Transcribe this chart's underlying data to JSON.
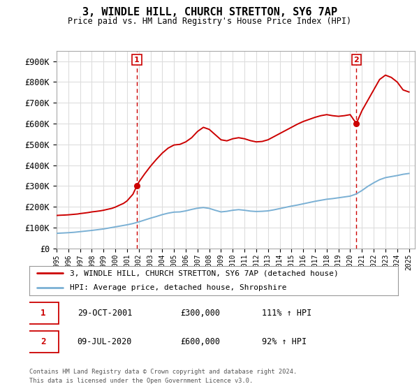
{
  "title": "3, WINDLE HILL, CHURCH STRETTON, SY6 7AP",
  "subtitle": "Price paid vs. HM Land Registry's House Price Index (HPI)",
  "ylabel_ticks": [
    "£0",
    "£100K",
    "£200K",
    "£300K",
    "£400K",
    "£500K",
    "£600K",
    "£700K",
    "£800K",
    "£900K"
  ],
  "ytick_values": [
    0,
    100000,
    200000,
    300000,
    400000,
    500000,
    600000,
    700000,
    800000,
    900000
  ],
  "ylim": [
    0,
    950000
  ],
  "xlim_start": 1995.0,
  "xlim_end": 2025.5,
  "property_color": "#cc0000",
  "hpi_color": "#7ab0d4",
  "vline_color": "#cc0000",
  "grid_color": "#dddddd",
  "background_color": "#ffffff",
  "legend_label_property": "3, WINDLE HILL, CHURCH STRETTON, SY6 7AP (detached house)",
  "legend_label_hpi": "HPI: Average price, detached house, Shropshire",
  "sale1_date": "29-OCT-2001",
  "sale1_price": 300000,
  "sale1_price_str": "£300,000",
  "sale1_hpi_pct": "111% ↑ HPI",
  "sale1_year": 2001.83,
  "sale2_date": "09-JUL-2020",
  "sale2_price": 600000,
  "sale2_price_str": "£600,000",
  "sale2_hpi_pct": "92% ↑ HPI",
  "sale2_year": 2020.52,
  "footer_line1": "Contains HM Land Registry data © Crown copyright and database right 2024.",
  "footer_line2": "This data is licensed under the Open Government Licence v3.0.",
  "hpi_data": [
    [
      1995.0,
      72000
    ],
    [
      1995.5,
      73500
    ],
    [
      1996.0,
      75000
    ],
    [
      1996.5,
      77000
    ],
    [
      1997.0,
      80000
    ],
    [
      1997.5,
      83000
    ],
    [
      1998.0,
      86000
    ],
    [
      1998.5,
      89500
    ],
    [
      1999.0,
      93000
    ],
    [
      1999.5,
      98000
    ],
    [
      2000.0,
      103000
    ],
    [
      2000.5,
      108000
    ],
    [
      2001.0,
      113000
    ],
    [
      2001.5,
      119000
    ],
    [
      2002.0,
      127000
    ],
    [
      2002.5,
      136000
    ],
    [
      2003.0,
      145000
    ],
    [
      2003.5,
      153000
    ],
    [
      2004.0,
      162000
    ],
    [
      2004.5,
      169000
    ],
    [
      2005.0,
      174000
    ],
    [
      2005.5,
      175000
    ],
    [
      2006.0,
      180000
    ],
    [
      2006.5,
      187000
    ],
    [
      2007.0,
      193000
    ],
    [
      2007.5,
      196000
    ],
    [
      2008.0,
      192000
    ],
    [
      2008.5,
      183000
    ],
    [
      2009.0,
      175000
    ],
    [
      2009.5,
      178000
    ],
    [
      2010.0,
      183000
    ],
    [
      2010.5,
      186000
    ],
    [
      2011.0,
      183000
    ],
    [
      2011.5,
      179000
    ],
    [
      2012.0,
      177000
    ],
    [
      2012.5,
      178000
    ],
    [
      2013.0,
      180000
    ],
    [
      2013.5,
      185000
    ],
    [
      2014.0,
      191000
    ],
    [
      2014.5,
      197000
    ],
    [
      2015.0,
      203000
    ],
    [
      2015.5,
      208000
    ],
    [
      2016.0,
      214000
    ],
    [
      2016.5,
      220000
    ],
    [
      2017.0,
      226000
    ],
    [
      2017.5,
      231000
    ],
    [
      2018.0,
      236000
    ],
    [
      2018.5,
      239000
    ],
    [
      2019.0,
      243000
    ],
    [
      2019.5,
      247000
    ],
    [
      2020.0,
      251000
    ],
    [
      2020.5,
      261000
    ],
    [
      2021.0,
      278000
    ],
    [
      2021.5,
      298000
    ],
    [
      2022.0,
      315000
    ],
    [
      2022.5,
      330000
    ],
    [
      2023.0,
      340000
    ],
    [
      2023.5,
      345000
    ],
    [
      2024.0,
      350000
    ],
    [
      2024.5,
      356000
    ],
    [
      2025.0,
      360000
    ]
  ],
  "property_data": [
    [
      1995.0,
      158000
    ],
    [
      1995.3,
      159000
    ],
    [
      1995.7,
      160000
    ],
    [
      1996.0,
      161000
    ],
    [
      1996.4,
      163000
    ],
    [
      1996.8,
      165000
    ],
    [
      1997.0,
      167000
    ],
    [
      1997.3,
      169000
    ],
    [
      1997.7,
      172000
    ],
    [
      1998.0,
      175000
    ],
    [
      1998.3,
      177000
    ],
    [
      1998.7,
      180000
    ],
    [
      1999.0,
      183000
    ],
    [
      1999.3,
      187000
    ],
    [
      1999.7,
      192000
    ],
    [
      2000.0,
      198000
    ],
    [
      2000.3,
      206000
    ],
    [
      2000.7,
      216000
    ],
    [
      2001.0,
      228000
    ],
    [
      2001.5,
      260000
    ],
    [
      2001.83,
      300000
    ],
    [
      2002.0,
      318000
    ],
    [
      2002.5,
      358000
    ],
    [
      2003.0,
      395000
    ],
    [
      2003.5,
      428000
    ],
    [
      2004.0,
      458000
    ],
    [
      2004.5,
      482000
    ],
    [
      2005.0,
      497000
    ],
    [
      2005.5,
      500000
    ],
    [
      2006.0,
      512000
    ],
    [
      2006.5,
      532000
    ],
    [
      2007.0,
      562000
    ],
    [
      2007.5,
      582000
    ],
    [
      2008.0,
      572000
    ],
    [
      2008.5,
      547000
    ],
    [
      2009.0,
      522000
    ],
    [
      2009.5,
      517000
    ],
    [
      2010.0,
      527000
    ],
    [
      2010.5,
      532000
    ],
    [
      2011.0,
      527000
    ],
    [
      2011.5,
      518000
    ],
    [
      2012.0,
      512000
    ],
    [
      2012.5,
      514000
    ],
    [
      2013.0,
      522000
    ],
    [
      2013.5,
      537000
    ],
    [
      2014.0,
      552000
    ],
    [
      2014.5,
      567000
    ],
    [
      2015.0,
      582000
    ],
    [
      2015.5,
      597000
    ],
    [
      2016.0,
      610000
    ],
    [
      2016.5,
      620000
    ],
    [
      2017.0,
      630000
    ],
    [
      2017.5,
      638000
    ],
    [
      2018.0,
      643000
    ],
    [
      2018.5,
      638000
    ],
    [
      2019.0,
      635000
    ],
    [
      2019.5,
      638000
    ],
    [
      2020.0,
      643000
    ],
    [
      2020.52,
      600000
    ],
    [
      2021.0,
      662000
    ],
    [
      2021.5,
      712000
    ],
    [
      2022.0,
      762000
    ],
    [
      2022.5,
      812000
    ],
    [
      2023.0,
      833000
    ],
    [
      2023.5,
      822000
    ],
    [
      2024.0,
      800000
    ],
    [
      2024.5,
      762000
    ],
    [
      2025.0,
      752000
    ]
  ]
}
